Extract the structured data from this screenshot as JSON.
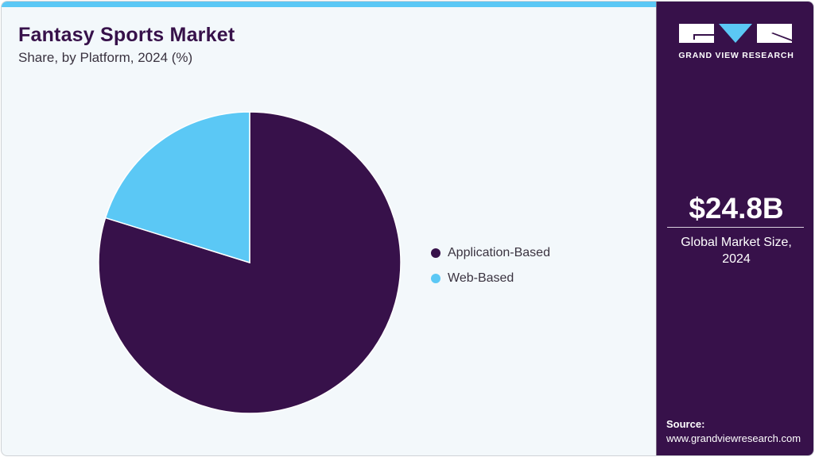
{
  "header": {
    "title": "Fantasy Sports Market",
    "subtitle": "Share, by Platform, 2024 (%)"
  },
  "legend": [
    {
      "label": "Application-Based",
      "color": "#37114a"
    },
    {
      "label": "Web-Based",
      "color": "#5bc8f5"
    }
  ],
  "sidebar": {
    "logo_icon": "gvr-logo-icon",
    "logo_text": "GRAND VIEW RESEARCH",
    "market_value": "$24.8B",
    "market_label_line1": "Global Market Size,",
    "market_label_line2": "2024",
    "source_label": "Source:",
    "source_url": "www.grandviewresearch.com"
  },
  "colors": {
    "brand_dark": "#37114a",
    "brand_light": "#5bc8f5",
    "background": "#f3f8fb"
  },
  "chart_data": {
    "type": "pie",
    "title": "Fantasy Sports Market",
    "subtitle": "Share, by Platform, 2024 (%)",
    "categories": [
      "Application-Based",
      "Web-Based"
    ],
    "values": [
      79.8,
      20.2
    ],
    "colors": [
      "#37114a",
      "#5bc8f5"
    ],
    "start_angle": "12 o'clock, clockwise",
    "legend_position": "right",
    "data_labels": false
  }
}
